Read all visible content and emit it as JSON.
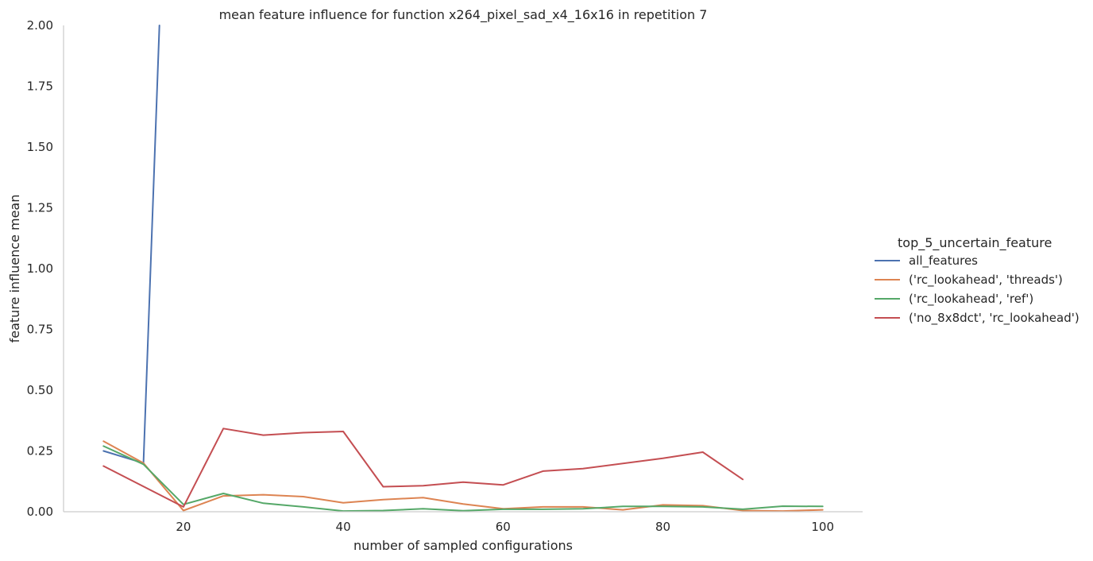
{
  "chart_data": {
    "type": "line",
    "title": "mean feature influence for function x264_pixel_sad_x4_16x16 in repetition 7",
    "xlabel": "number of sampled configurations",
    "ylabel": "feature influence mean",
    "xlim": [
      5,
      105
    ],
    "ylim": [
      0,
      2.0
    ],
    "xticks": [
      "20",
      "40",
      "60",
      "80",
      "100"
    ],
    "yticks": [
      "0.00",
      "0.25",
      "0.50",
      "0.75",
      "1.00",
      "1.25",
      "1.50",
      "1.75",
      "2.00"
    ],
    "grid": false,
    "legend": {
      "title": "top_5_uncertain_feature",
      "placement": "right"
    },
    "series": [
      {
        "name": "all_features",
        "color": "#4c72b0",
        "x": [
          10,
          15,
          17
        ],
        "y": [
          0.25,
          0.2,
          2.0
        ]
      },
      {
        "name": "('rc_lookahead', 'threads')",
        "color": "#dd8452",
        "x": [
          10,
          15,
          20,
          25,
          30,
          35,
          40,
          45,
          50,
          55,
          60,
          65,
          70,
          75,
          80,
          85,
          90,
          95,
          100
        ],
        "y": [
          0.29,
          0.2,
          0.005,
          0.065,
          0.07,
          0.062,
          0.037,
          0.05,
          0.058,
          0.032,
          0.012,
          0.02,
          0.02,
          0.008,
          0.028,
          0.025,
          0.005,
          0.003,
          0.008
        ]
      },
      {
        "name": "('rc_lookahead', 'ref')",
        "color": "#55a868",
        "x": [
          10,
          15,
          20,
          25,
          30,
          35,
          40,
          45,
          50,
          55,
          60,
          65,
          70,
          75,
          80,
          85,
          90,
          95,
          100
        ],
        "y": [
          0.27,
          0.195,
          0.03,
          0.075,
          0.035,
          0.02,
          0.003,
          0.005,
          0.012,
          0.004,
          0.01,
          0.01,
          0.012,
          0.022,
          0.022,
          0.02,
          0.01,
          0.023,
          0.022
        ]
      },
      {
        "name": "('no_8x8dct', 'rc_lookahead')",
        "color": "#c44e52",
        "x": [
          10,
          20,
          25,
          30,
          35,
          40,
          45,
          50,
          55,
          60,
          65,
          70,
          80,
          85,
          90
        ],
        "y": [
          0.188,
          0.02,
          0.342,
          0.315,
          0.325,
          0.33,
          0.103,
          0.107,
          0.122,
          0.11,
          0.167,
          0.177,
          0.22,
          0.245,
          0.133
        ]
      }
    ]
  }
}
